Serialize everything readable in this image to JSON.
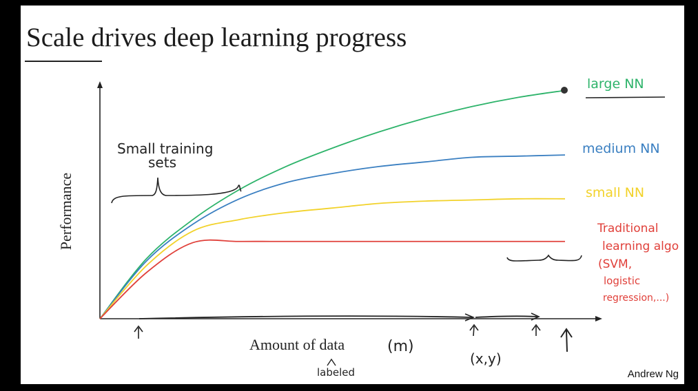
{
  "slide": {
    "title_word_underlined": "Scale",
    "title_rest": " drives deep learning progress",
    "author": "Andrew Ng"
  },
  "chart_data": {
    "type": "line",
    "xlabel": "Amount of data",
    "ylabel": "Performance",
    "xlim": [
      0,
      10
    ],
    "ylim": [
      0,
      10
    ],
    "x": [
      0,
      1,
      2,
      3,
      4,
      5,
      6,
      7,
      8,
      9,
      10
    ],
    "series": [
      {
        "name": "large NN",
        "color": "#2db36a",
        "values": [
          0,
          2.6,
          4.3,
          5.6,
          6.6,
          7.4,
          8.1,
          8.7,
          9.2,
          9.6,
          9.9
        ]
      },
      {
        "name": "medium NN",
        "color": "#3a7fc1",
        "values": [
          0,
          2.5,
          4.1,
          5.2,
          5.9,
          6.3,
          6.6,
          6.8,
          7.0,
          7.05,
          7.1
        ]
      },
      {
        "name": "small NN",
        "color": "#f2d22a",
        "values": [
          0,
          2.3,
          3.8,
          4.3,
          4.6,
          4.8,
          5.0,
          5.1,
          5.15,
          5.2,
          5.2
        ]
      },
      {
        "name": "Traditional learning algo",
        "color": "#e0403a",
        "values": [
          0,
          2.0,
          3.3,
          3.35,
          3.35,
          3.35,
          3.35,
          3.35,
          3.35,
          3.35,
          3.35
        ]
      }
    ],
    "grid": false
  },
  "annotations": {
    "small_training": [
      "Small training",
      "sets"
    ],
    "large": "large NN",
    "medium": "medium NN",
    "small": "small NN",
    "traditional": [
      "Traditional",
      "learning algo",
      "(SVM,",
      "logistic",
      "regression,...)"
    ],
    "m": "(m)",
    "xy": "(x,y)",
    "labeled": "labeled"
  }
}
